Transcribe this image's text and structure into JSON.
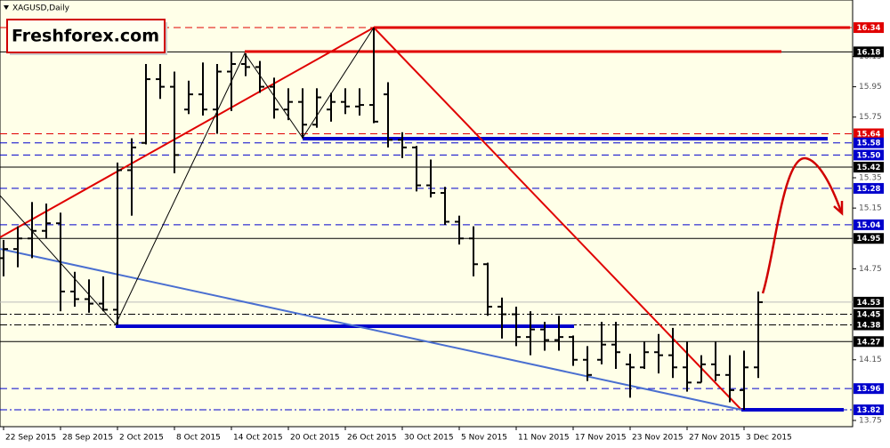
{
  "chart_data": {
    "type": "ohlc",
    "title": "XAGUSD,Daily",
    "watermark": "Freshforex.com",
    "categories": [
      "22 Sep 2015",
      null,
      null,
      null,
      "28 Sep 2015",
      null,
      null,
      null,
      "2 Oct 2015",
      null,
      null,
      null,
      "8 Oct 2015",
      null,
      null,
      null,
      "14 Oct 2015",
      null,
      null,
      null,
      "20 Oct 2015",
      null,
      null,
      null,
      "26 Oct 2015",
      null,
      null,
      null,
      "30 Oct 2015",
      null,
      null,
      null,
      "5 Nov 2015",
      null,
      null,
      null,
      "11 Nov 2015",
      null,
      null,
      null,
      "17 Nov 2015",
      null,
      null,
      null,
      "23 Nov 2015",
      null,
      null,
      null,
      "27 Nov 2015",
      null,
      null,
      null,
      "3 Dec 2015",
      null
    ],
    "open": [
      14.82,
      14.88,
      14.95,
      15.0,
      15.05,
      14.6,
      14.55,
      14.52,
      14.48,
      15.4,
      15.58,
      16.0,
      15.95,
      15.8,
      15.9,
      15.8,
      16.05,
      16.1,
      16.08,
      15.95,
      15.8,
      15.85,
      15.7,
      15.8,
      15.85,
      15.82,
      15.83,
      15.9,
      15.6,
      15.55,
      15.3,
      15.25,
      15.06,
      14.95,
      14.78,
      14.5,
      14.45,
      14.3,
      14.35,
      14.28,
      14.3,
      14.15,
      14.15,
      14.25,
      14.12,
      14.1,
      14.2,
      14.18,
      14.1,
      14.0,
      14.12,
      14.05,
      13.95,
      14.1
    ],
    "high": [
      14.94,
      15.03,
      15.19,
      15.18,
      15.12,
      14.73,
      14.68,
      14.7,
      15.45,
      15.61,
      16.1,
      16.1,
      16.05,
      15.99,
      16.11,
      16.1,
      16.18,
      16.17,
      16.12,
      16.01,
      15.94,
      15.94,
      15.94,
      15.91,
      15.94,
      15.94,
      16.34,
      15.98,
      15.65,
      15.56,
      15.47,
      15.29,
      15.1,
      15.03,
      14.79,
      14.56,
      14.5,
      14.47,
      14.4,
      14.44,
      14.31,
      14.24,
      14.4,
      14.4,
      14.19,
      14.27,
      14.32,
      14.36,
      14.27,
      14.18,
      14.27,
      14.18,
      14.21,
      14.6
    ],
    "low": [
      14.7,
      14.76,
      14.82,
      14.95,
      14.47,
      14.5,
      14.46,
      14.47,
      14.38,
      15.1,
      15.57,
      15.87,
      15.38,
      15.77,
      15.76,
      15.64,
      15.79,
      16.02,
      15.91,
      15.74,
      15.73,
      15.61,
      15.68,
      15.72,
      15.77,
      15.76,
      15.71,
      15.55,
      15.48,
      15.26,
      15.22,
      15.04,
      14.91,
      14.7,
      14.44,
      14.29,
      14.24,
      14.18,
      14.21,
      14.21,
      14.11,
      14.01,
      14.12,
      14.09,
      13.9,
      14.09,
      14.06,
      14.03,
      13.94,
      14.0,
      14.01,
      13.87,
      13.82,
      14.03
    ],
    "close": [
      14.88,
      14.95,
      15.0,
      15.05,
      14.6,
      14.55,
      14.52,
      14.48,
      15.4,
      15.55,
      16.0,
      15.95,
      15.5,
      15.9,
      15.8,
      16.05,
      16.1,
      16.08,
      15.95,
      15.8,
      15.85,
      15.7,
      15.88,
      15.85,
      15.82,
      15.83,
      15.72,
      15.6,
      15.55,
      15.3,
      15.25,
      15.06,
      14.95,
      14.78,
      14.5,
      14.45,
      14.3,
      14.35,
      14.28,
      14.3,
      14.15,
      14.05,
      14.25,
      14.2,
      14.1,
      14.2,
      14.18,
      14.1,
      14.0,
      14.12,
      14.05,
      13.95,
      14.1,
      14.53
    ],
    "color": "#000000",
    "ylim": [
      13.709,
      16.522
    ],
    "yticks": [
      13.75,
      14.15,
      14.75,
      15.15,
      15.35,
      15.75,
      15.95,
      16.15
    ],
    "levels": [
      {
        "value": 16.34,
        "label": "16.34",
        "color": "#e00000",
        "line": "dash"
      },
      {
        "value": 16.18,
        "label": "16.18",
        "color": "#000000",
        "line": "solid"
      },
      {
        "value": 15.64,
        "label": "15.64",
        "color": "#e00000",
        "line": "dash"
      },
      {
        "value": 15.58,
        "label": "15.58",
        "color": "#0000cc",
        "line": "dash"
      },
      {
        "value": 15.5,
        "label": "15.50",
        "color": "#0000cc",
        "line": "dash"
      },
      {
        "value": 15.42,
        "label": "15.42",
        "color": "#000000",
        "line": "solid"
      },
      {
        "value": 15.28,
        "label": "15.28",
        "color": "#0000cc",
        "line": "dash"
      },
      {
        "value": 15.04,
        "label": "15.04",
        "color": "#0000cc",
        "line": "dash"
      },
      {
        "value": 14.95,
        "label": "14.95",
        "color": "#000000",
        "line": "solid"
      },
      {
        "value": 14.53,
        "label": "14.53",
        "color": "#000000",
        "line": "light"
      },
      {
        "value": 14.45,
        "label": "14.45",
        "color": "#000000",
        "line": "dashdot"
      },
      {
        "value": 14.38,
        "label": "14.38",
        "color": "#000000",
        "line": "dashdot"
      },
      {
        "value": 14.27,
        "label": "14.27",
        "color": "#000000",
        "line": "solid"
      },
      {
        "value": 13.96,
        "label": "13.96",
        "color": "#0000cc",
        "line": "dash"
      },
      {
        "value": 13.82,
        "label": "13.82",
        "color": "#0000cc",
        "line": "dashdot"
      }
    ]
  }
}
